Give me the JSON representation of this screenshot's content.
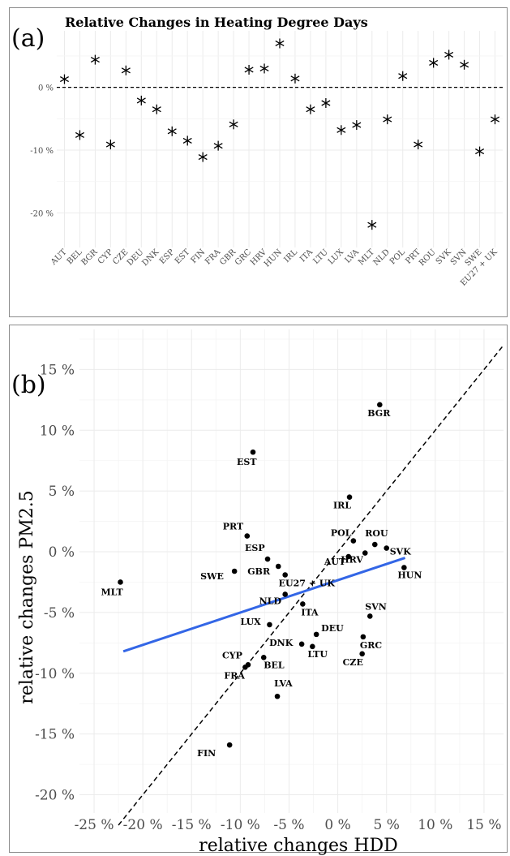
{
  "chart_data": [
    {
      "type": "scatter",
      "panel_label": "(a)",
      "title": "Relative Changes in Heating Degree Days",
      "marker": "asterisk",
      "reference_line": {
        "y": 0,
        "style": "dashed"
      },
      "y_ticks": [
        "0 %",
        "-10 %",
        "-20 %"
      ],
      "y_tick_values": [
        0,
        -10,
        -20
      ],
      "ylim": [
        -25.5,
        9
      ],
      "categories": [
        "AUT",
        "BEL",
        "BGR",
        "CYP",
        "CZE",
        "DEU",
        "DNK",
        "ESP",
        "EST",
        "FIN",
        "FRA",
        "GBR",
        "GRC",
        "HRV",
        "HUN",
        "IRL",
        "ITA",
        "LTU",
        "LUX",
        "LVA",
        "MLT",
        "NLD",
        "POL",
        "PRT",
        "ROU",
        "SVK",
        "SVN",
        "SWE",
        "EU27 + UK"
      ],
      "values": [
        1.3,
        -7.6,
        4.4,
        -9.1,
        2.7,
        -2.1,
        -3.5,
        -7.0,
        -8.5,
        -11.1,
        -9.3,
        -5.9,
        2.8,
        3.0,
        7.0,
        1.4,
        -3.5,
        -2.5,
        -6.8,
        -6.0,
        -21.9,
        -5.1,
        1.8,
        -9.1,
        3.9,
        5.2,
        3.6,
        -10.2,
        -5.1
      ]
    },
    {
      "type": "scatter",
      "panel_label": "(b)",
      "xlabel": "relative changes HDD",
      "ylabel": "relative changes PM2.5",
      "x_ticks": [
        "-25 %",
        "-20 %",
        "-15 %",
        "-10 %",
        "-5 %",
        "0 %",
        "5 %",
        "10 %",
        "15 %"
      ],
      "x_tick_values": [
        -25,
        -20,
        -15,
        -10,
        -5,
        0,
        5,
        10,
        15
      ],
      "y_ticks": [
        "15 %",
        "10 %",
        "5 %",
        "0 %",
        "-5 %",
        "-10 %",
        "-15 %",
        "-20 %"
      ],
      "y_tick_values": [
        15,
        10,
        5,
        0,
        -5,
        -10,
        -15,
        -20
      ],
      "xlim": [
        -26.5,
        17
      ],
      "ylim": [
        -21.5,
        18.3
      ],
      "identity_line": {
        "style": "dashed"
      },
      "fit_line": {
        "x": [
          -22.0,
          6.9
        ],
        "y": [
          -8.2,
          -0.5
        ],
        "color": "#3366e6"
      },
      "points": [
        {
          "label": "BGR",
          "x": 4.3,
          "y": 12.1
        },
        {
          "label": "EST",
          "x": -8.7,
          "y": 8.2
        },
        {
          "label": "IRL",
          "x": 1.2,
          "y": 4.5
        },
        {
          "label": "PRT",
          "x": -9.3,
          "y": 1.3
        },
        {
          "label": "POL",
          "x": 1.6,
          "y": 0.9
        },
        {
          "label": "ROU",
          "x": 3.8,
          "y": 0.6
        },
        {
          "label": "SVK",
          "x": 5.0,
          "y": 0.3
        },
        {
          "label": "HRV",
          "x": 2.8,
          "y": -0.1
        },
        {
          "label": "AUT",
          "x": 1.1,
          "y": -0.4
        },
        {
          "label": "ESP",
          "x": -7.2,
          "y": -0.6
        },
        {
          "label": "GBR",
          "x": -6.1,
          "y": -1.2
        },
        {
          "label": "HUN",
          "x": 6.8,
          "y": -1.3
        },
        {
          "label": "SWE",
          "x": -10.6,
          "y": -1.6
        },
        {
          "label": "EU27 + UK",
          "x": -5.4,
          "y": -1.9
        },
        {
          "label": "MLT",
          "x": -22.3,
          "y": -2.5
        },
        {
          "label": "NLD",
          "x": -5.4,
          "y": -3.5
        },
        {
          "label": "ITA",
          "x": -3.6,
          "y": -4.3
        },
        {
          "label": "SVN",
          "x": 3.3,
          "y": -5.3
        },
        {
          "label": "LUX",
          "x": -7.0,
          "y": -6.0
        },
        {
          "label": "DEU",
          "x": -2.2,
          "y": -6.8
        },
        {
          "label": "GRC",
          "x": 2.6,
          "y": -7.0
        },
        {
          "label": "DNK",
          "x": -3.7,
          "y": -7.6
        },
        {
          "label": "LTU",
          "x": -2.6,
          "y": -7.8
        },
        {
          "label": "CZE",
          "x": 2.5,
          "y": -8.4
        },
        {
          "label": "BEL",
          "x": -7.6,
          "y": -8.7
        },
        {
          "label": "CYP",
          "x": -9.2,
          "y": -9.3
        },
        {
          "label": "FRA",
          "x": -9.5,
          "y": -9.5
        },
        {
          "label": "LVA",
          "x": -6.2,
          "y": -11.9
        },
        {
          "label": "FIN",
          "x": -11.1,
          "y": -15.9
        }
      ]
    }
  ]
}
